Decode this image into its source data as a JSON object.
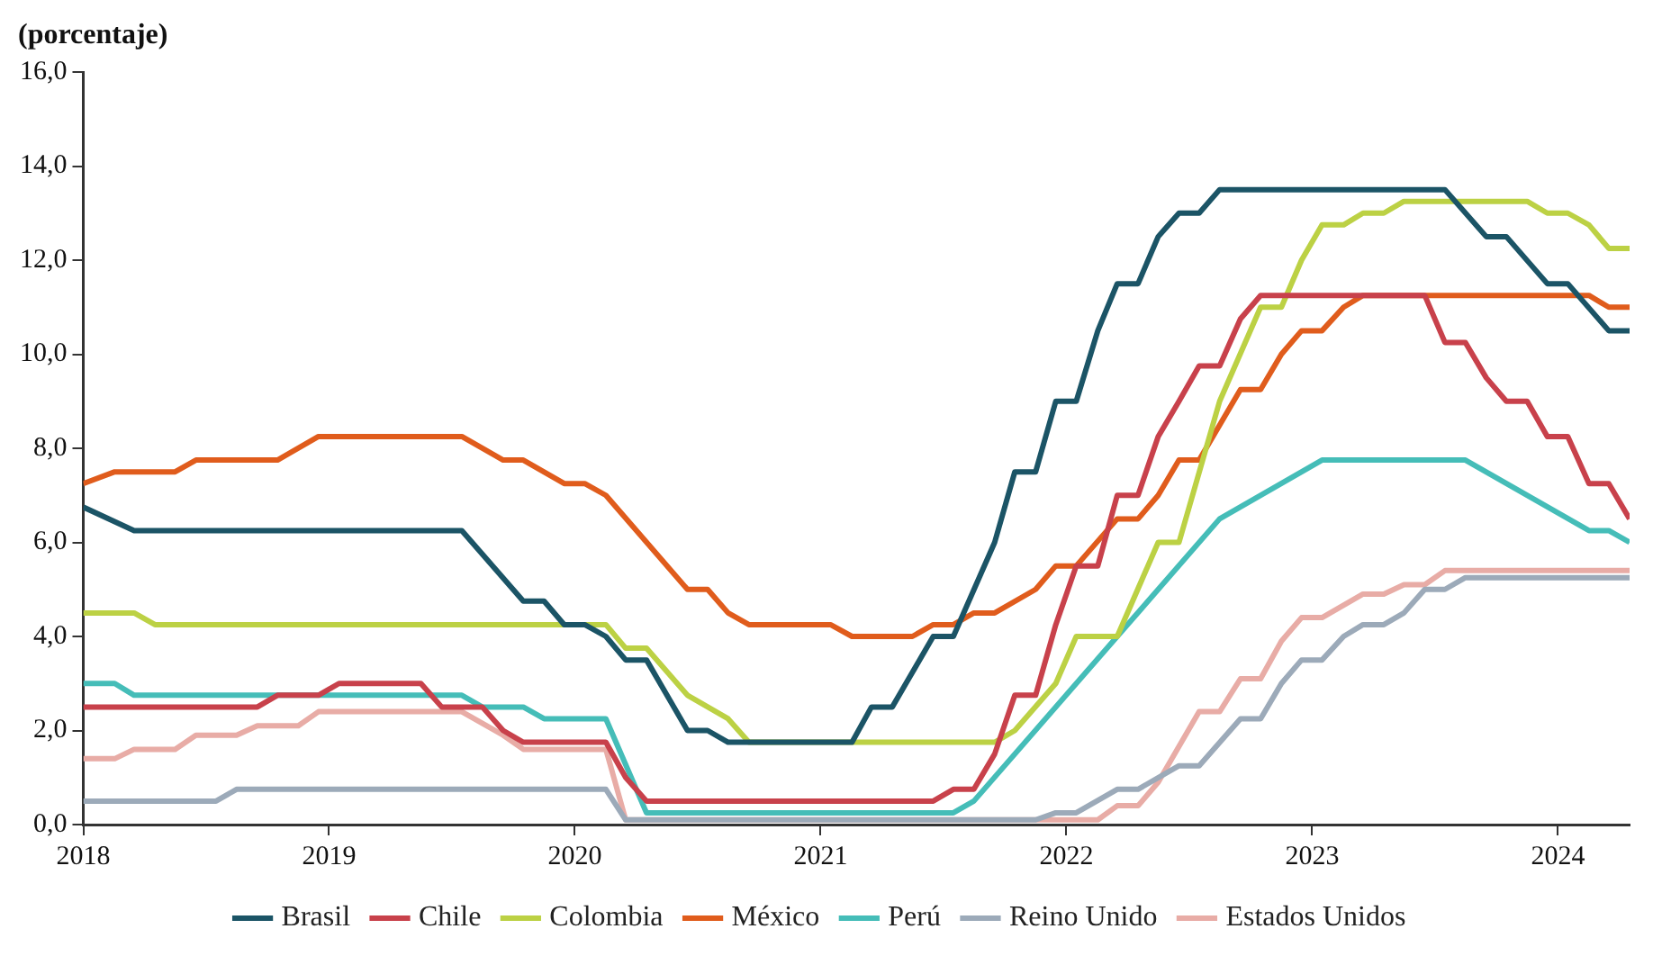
{
  "chart_data": {
    "type": "line",
    "ylabel": "(porcentaje)",
    "xlim": [
      "2018-01-01",
      "2024-04-16"
    ],
    "xticks": [
      {
        "value": "2018-01-01",
        "label": "2018"
      },
      {
        "value": "2019-01-01",
        "label": "2019"
      },
      {
        "value": "2020-01-01",
        "label": "2020"
      },
      {
        "value": "2021-01-01",
        "label": "2021"
      },
      {
        "value": "2022-01-01",
        "label": "2022"
      },
      {
        "value": "2023-01-01",
        "label": "2023"
      },
      {
        "value": "2024-01-01",
        "label": "2024"
      }
    ],
    "ylim": [
      0,
      16
    ],
    "yticks": [
      {
        "value": 0,
        "label": "0,0"
      },
      {
        "value": 2,
        "label": "2,0"
      },
      {
        "value": 4,
        "label": "4,0"
      },
      {
        "value": 6,
        "label": "6,0"
      },
      {
        "value": 8,
        "label": "8,0"
      },
      {
        "value": 10,
        "label": "10,0"
      },
      {
        "value": 12,
        "label": "12,0"
      },
      {
        "value": 14,
        "label": "14,0"
      },
      {
        "value": 16,
        "label": "16,0"
      }
    ],
    "grid": false,
    "legend": "bottom",
    "marker": "none",
    "line_style": "solid",
    "series": [
      {
        "name": "Brasil",
        "color": "#1b5466",
        "x": [
          "2018-01-01",
          "2018-03-16",
          "2019-07-16",
          "2019-10-16",
          "2019-11-16",
          "2019-12-16",
          "2020-01-16",
          "2020-02-16",
          "2020-03-16",
          "2020-04-16",
          "2020-06-16",
          "2020-07-16",
          "2020-08-16",
          "2021-02-16",
          "2021-03-16",
          "2021-04-16",
          "2021-06-16",
          "2021-07-16",
          "2021-09-16",
          "2021-10-16",
          "2021-11-16",
          "2021-12-16",
          "2022-01-16",
          "2022-02-16",
          "2022-03-16",
          "2022-04-16",
          "2022-05-16",
          "2022-06-16",
          "2022-07-16",
          "2022-08-16",
          "2023-07-16",
          "2023-09-16",
          "2023-10-16",
          "2023-12-16",
          "2024-01-16",
          "2024-03-16",
          "2024-04-16"
        ],
        "values": [
          6.75,
          6.25,
          6.25,
          4.75,
          4.75,
          4.25,
          4.25,
          4.0,
          3.5,
          3.5,
          2.0,
          2.0,
          1.75,
          1.75,
          2.5,
          2.5,
          4.0,
          4.0,
          6.0,
          7.5,
          7.5,
          9.0,
          9.0,
          10.5,
          11.5,
          11.5,
          12.5,
          13.0,
          13.0,
          13.5,
          13.5,
          12.5,
          12.5,
          11.5,
          11.5,
          10.5,
          10.5
        ]
      },
      {
        "name": "Chile",
        "color": "#c8414b",
        "x": [
          "2018-01-01",
          "2018-09-16",
          "2018-10-16",
          "2018-12-16",
          "2019-01-16",
          "2019-05-16",
          "2019-06-16",
          "2019-08-16",
          "2019-09-16",
          "2019-10-16",
          "2020-02-16",
          "2020-03-16",
          "2020-04-16",
          "2021-06-16",
          "2021-07-16",
          "2021-08-16",
          "2021-09-16",
          "2021-10-16",
          "2021-11-16",
          "2021-12-16",
          "2022-01-16",
          "2022-02-16",
          "2022-03-16",
          "2022-04-16",
          "2022-05-16",
          "2022-06-16",
          "2022-07-16",
          "2022-08-16",
          "2022-09-16",
          "2022-10-16",
          "2023-06-16",
          "2023-07-16",
          "2023-08-16",
          "2023-09-16",
          "2023-10-16",
          "2023-11-16",
          "2023-12-16",
          "2024-01-16",
          "2024-02-16",
          "2024-03-16",
          "2024-04-16"
        ],
        "values": [
          2.5,
          2.5,
          2.75,
          2.75,
          3.0,
          3.0,
          2.5,
          2.5,
          2.0,
          1.75,
          1.75,
          1.0,
          0.5,
          0.5,
          0.75,
          0.75,
          1.5,
          2.75,
          2.75,
          4.25,
          5.5,
          5.5,
          7.0,
          7.0,
          8.25,
          9.0,
          9.75,
          9.75,
          10.75,
          11.25,
          11.25,
          10.25,
          10.25,
          9.5,
          9.0,
          9.0,
          8.25,
          8.25,
          7.25,
          7.25,
          6.5
        ]
      },
      {
        "name": "Colombia",
        "color": "#bcd144",
        "x": [
          "2018-01-01",
          "2018-03-16",
          "2018-04-16",
          "2020-02-16",
          "2020-03-16",
          "2020-04-16",
          "2020-06-16",
          "2020-08-16",
          "2020-09-16",
          "2021-09-16",
          "2021-10-16",
          "2021-12-16",
          "2022-01-16",
          "2022-03-16",
          "2022-05-16",
          "2022-06-16",
          "2022-08-16",
          "2022-10-16",
          "2022-11-16",
          "2022-12-16",
          "2023-01-16",
          "2023-02-16",
          "2023-03-16",
          "2023-04-16",
          "2023-05-16",
          "2023-11-16",
          "2023-12-16",
          "2024-01-16",
          "2024-02-16",
          "2024-03-16",
          "2024-04-16"
        ],
        "values": [
          4.5,
          4.5,
          4.25,
          4.25,
          3.75,
          3.75,
          2.75,
          2.25,
          1.75,
          1.75,
          2.0,
          3.0,
          4.0,
          4.0,
          6.0,
          6.0,
          9.0,
          11.0,
          11.0,
          12.0,
          12.75,
          12.75,
          13.0,
          13.0,
          13.25,
          13.25,
          13.0,
          13.0,
          12.75,
          12.25,
          12.25
        ]
      },
      {
        "name": "México",
        "color": "#e05c1c",
        "x": [
          "2018-01-01",
          "2018-02-16",
          "2018-05-16",
          "2018-06-16",
          "2018-10-16",
          "2018-12-16",
          "2019-07-16",
          "2019-09-16",
          "2019-10-16",
          "2019-12-16",
          "2020-01-16",
          "2020-02-16",
          "2020-06-16",
          "2020-07-16",
          "2020-08-16",
          "2020-09-16",
          "2021-01-16",
          "2021-02-16",
          "2021-05-16",
          "2021-06-16",
          "2021-07-16",
          "2021-08-16",
          "2021-09-16",
          "2021-11-16",
          "2021-12-16",
          "2022-01-16",
          "2022-03-16",
          "2022-04-16",
          "2022-05-16",
          "2022-06-16",
          "2022-07-16",
          "2022-09-16",
          "2022-10-16",
          "2022-11-16",
          "2022-12-16",
          "2023-01-16",
          "2023-02-16",
          "2023-03-16",
          "2024-02-16",
          "2024-03-16",
          "2024-04-16"
        ],
        "values": [
          7.25,
          7.5,
          7.5,
          7.75,
          7.75,
          8.25,
          8.25,
          7.75,
          7.75,
          7.25,
          7.25,
          7.0,
          5.0,
          5.0,
          4.5,
          4.25,
          4.25,
          4.0,
          4.0,
          4.25,
          4.25,
          4.5,
          4.5,
          5.0,
          5.5,
          5.5,
          6.5,
          6.5,
          7.0,
          7.75,
          7.75,
          9.25,
          9.25,
          10.0,
          10.5,
          10.5,
          11.0,
          11.25,
          11.25,
          11.0,
          11.0
        ]
      },
      {
        "name": "Perú",
        "color": "#45bdb8",
        "x": [
          "2018-01-01",
          "2018-02-16",
          "2018-03-16",
          "2019-07-16",
          "2019-08-16",
          "2019-10-16",
          "2019-11-16",
          "2020-02-16",
          "2020-04-16",
          "2021-07-16",
          "2021-08-16",
          "2022-03-16",
          "2022-08-16",
          "2023-01-16",
          "2023-08-16",
          "2024-02-16",
          "2024-03-16",
          "2024-04-16"
        ],
        "values": [
          3.0,
          3.0,
          2.75,
          2.75,
          2.5,
          2.5,
          2.25,
          2.25,
          0.25,
          0.25,
          0.5,
          4.0,
          6.5,
          7.75,
          7.75,
          6.25,
          6.25,
          6.0
        ]
      },
      {
        "name": "Reino Unido",
        "color": "#9caab9",
        "x": [
          "2018-01-01",
          "2018-07-16",
          "2018-08-16",
          "2020-02-16",
          "2020-03-16",
          "2021-11-16",
          "2021-12-16",
          "2022-01-16",
          "2022-03-16",
          "2022-04-16",
          "2022-06-16",
          "2022-07-16",
          "2022-09-16",
          "2022-10-16",
          "2022-11-16",
          "2022-12-16",
          "2023-01-16",
          "2023-02-16",
          "2023-03-16",
          "2023-04-16",
          "2023-05-16",
          "2023-06-16",
          "2023-07-16",
          "2023-08-16",
          "2024-04-16"
        ],
        "values": [
          0.5,
          0.5,
          0.75,
          0.75,
          0.1,
          0.1,
          0.25,
          0.25,
          0.75,
          0.75,
          1.25,
          1.25,
          2.25,
          2.25,
          3.0,
          3.5,
          3.5,
          4.0,
          4.25,
          4.25,
          4.5,
          5.0,
          5.0,
          5.25,
          5.25
        ]
      },
      {
        "name": "Estados Unidos",
        "color": "#e8aca6",
        "x": [
          "2018-01-01",
          "2018-02-16",
          "2018-03-16",
          "2018-05-16",
          "2018-06-16",
          "2018-08-16",
          "2018-09-16",
          "2018-11-16",
          "2018-12-16",
          "2019-07-16",
          "2019-09-16",
          "2019-10-16",
          "2020-02-16",
          "2020-03-16",
          "2022-02-16",
          "2022-03-16",
          "2022-04-16",
          "2022-05-16",
          "2022-07-16",
          "2022-08-16",
          "2022-09-16",
          "2022-10-16",
          "2022-11-16",
          "2022-12-16",
          "2023-01-16",
          "2023-03-16",
          "2023-04-16",
          "2023-05-16",
          "2023-06-16",
          "2023-07-16",
          "2024-04-16"
        ],
        "values": [
          1.4,
          1.4,
          1.6,
          1.6,
          1.9,
          1.9,
          2.1,
          2.1,
          2.4,
          2.4,
          1.9,
          1.6,
          1.6,
          0.1,
          0.1,
          0.4,
          0.4,
          0.9,
          2.4,
          2.4,
          3.1,
          3.1,
          3.9,
          4.4,
          4.4,
          4.9,
          4.9,
          5.1,
          5.1,
          5.4,
          5.4
        ]
      }
    ]
  }
}
